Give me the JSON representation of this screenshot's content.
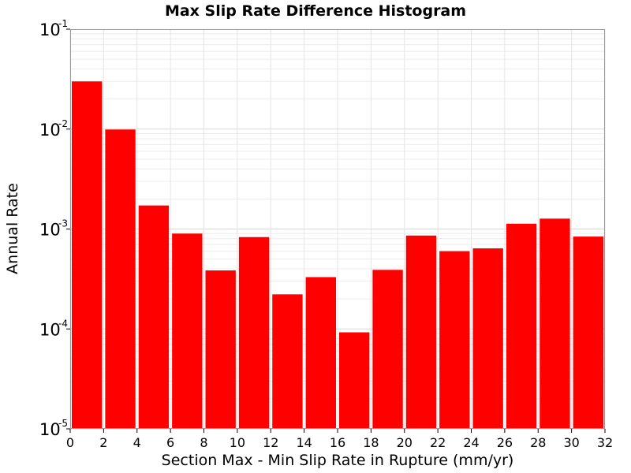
{
  "chart_data": {
    "type": "bar",
    "title": "Max Slip Rate Difference Histogram",
    "xlabel": "Section Max - Min Slip Rate in Rupture (mm/yr)",
    "ylabel": "Annual Rate",
    "xlim": [
      0,
      32
    ],
    "ylim": [
      1e-05,
      0.1
    ],
    "yscale": "log",
    "grid": true,
    "legend": "none",
    "bar_color": "#ff0000",
    "bar_width": 2,
    "x_ticks": [
      "0",
      "2",
      "4",
      "6",
      "8",
      "10",
      "12",
      "14",
      "16",
      "18",
      "20",
      "22",
      "24",
      "26",
      "28",
      "30",
      "32"
    ],
    "y_ticks": [
      {
        "base": "10",
        "exp": "-1",
        "value": 0.1
      },
      {
        "base": "10",
        "exp": "-2",
        "value": 0.01
      },
      {
        "base": "10",
        "exp": "-3",
        "value": 0.001
      },
      {
        "base": "10",
        "exp": "-4",
        "value": 0.0001
      },
      {
        "base": "10",
        "exp": "-5",
        "value": 1e-05
      }
    ],
    "x": [
      1,
      3,
      5,
      7,
      9,
      11,
      13,
      15,
      17,
      19,
      21,
      23,
      25,
      27,
      29,
      31
    ],
    "values": [
      0.03,
      0.0099,
      0.00172,
      0.0009,
      0.000385,
      0.00083,
      0.000222,
      0.00033,
      9.25e-05,
      0.00039,
      0.00086,
      0.0006,
      0.00064,
      0.00113,
      0.00127,
      0.00084
    ]
  }
}
